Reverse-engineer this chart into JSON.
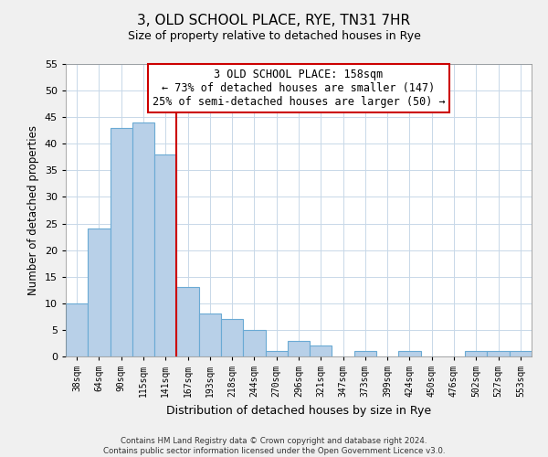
{
  "title": "3, OLD SCHOOL PLACE, RYE, TN31 7HR",
  "subtitle": "Size of property relative to detached houses in Rye",
  "xlabel": "Distribution of detached houses by size in Rye",
  "ylabel": "Number of detached properties",
  "bar_labels": [
    "38sqm",
    "64sqm",
    "90sqm",
    "115sqm",
    "141sqm",
    "167sqm",
    "193sqm",
    "218sqm",
    "244sqm",
    "270sqm",
    "296sqm",
    "321sqm",
    "347sqm",
    "373sqm",
    "399sqm",
    "424sqm",
    "450sqm",
    "476sqm",
    "502sqm",
    "527sqm",
    "553sqm"
  ],
  "bar_values": [
    10,
    24,
    43,
    44,
    38,
    13,
    8,
    7,
    5,
    1,
    3,
    2,
    0,
    1,
    0,
    1,
    0,
    0,
    1,
    1,
    1
  ],
  "bar_color": "#b8d0e8",
  "bar_edge_color": "#6aaad4",
  "vline_x_index": 5,
  "vline_color": "#cc0000",
  "annotation_title": "3 OLD SCHOOL PLACE: 158sqm",
  "annotation_line1": "← 73% of detached houses are smaller (147)",
  "annotation_line2": "25% of semi-detached houses are larger (50) →",
  "annotation_box_color": "#ffffff",
  "annotation_box_edge": "#cc0000",
  "ylim": [
    0,
    55
  ],
  "yticks": [
    0,
    5,
    10,
    15,
    20,
    25,
    30,
    35,
    40,
    45,
    50,
    55
  ],
  "footer_line1": "Contains HM Land Registry data © Crown copyright and database right 2024.",
  "footer_line2": "Contains public sector information licensed under the Open Government Licence v3.0.",
  "bg_color": "#f0f0f0",
  "plot_bg_color": "#ffffff",
  "grid_color": "#c8d8e8"
}
